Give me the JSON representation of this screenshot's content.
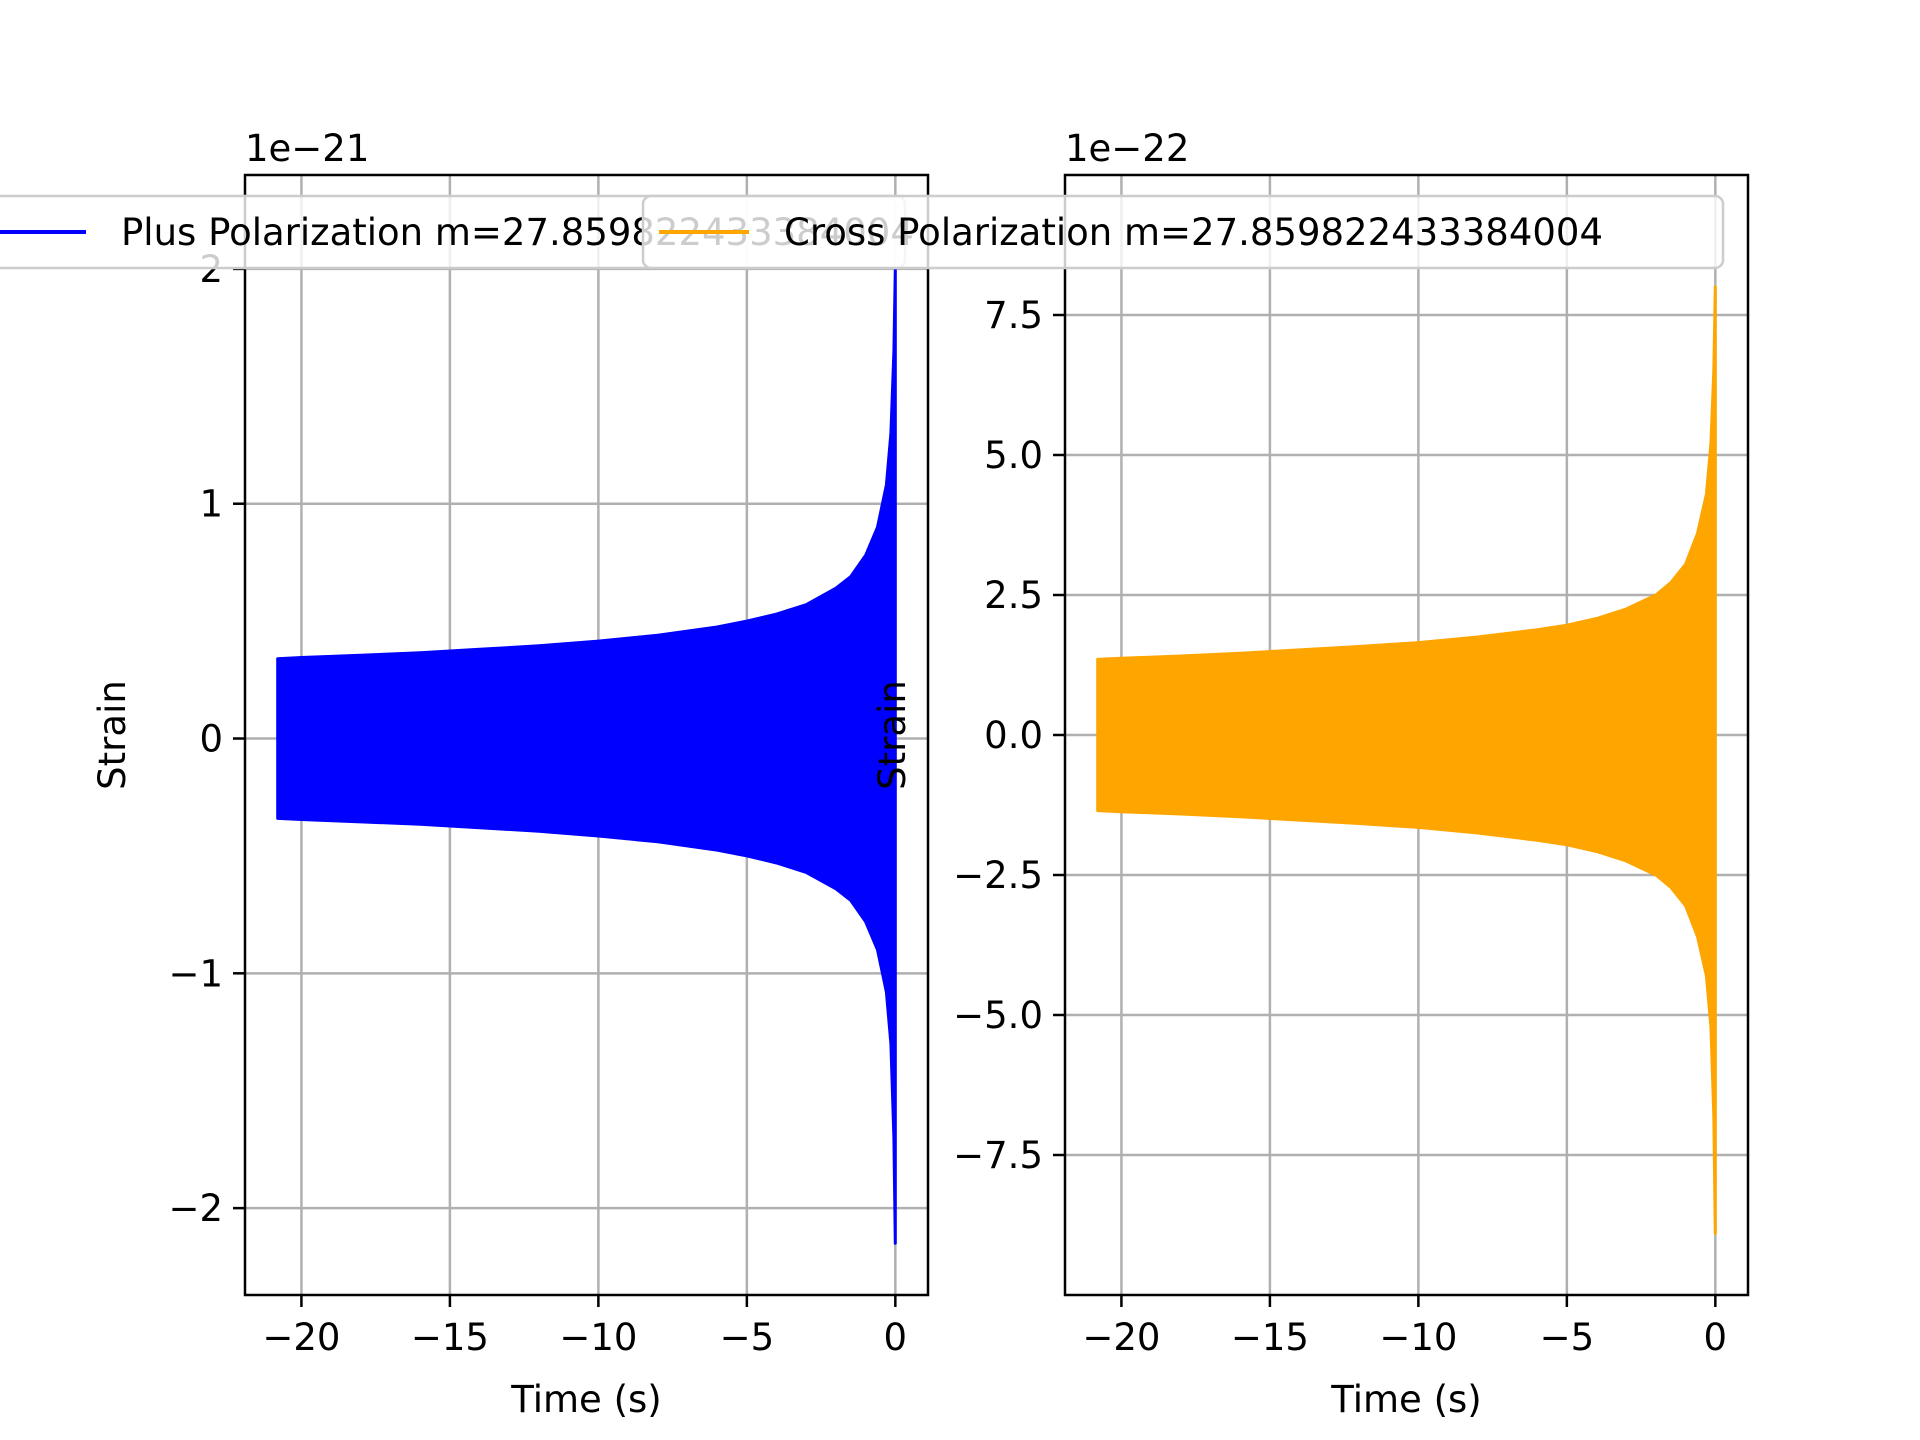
{
  "chart_data": [
    {
      "type": "line",
      "title": "",
      "xlabel": "Time (s)",
      "ylabel": "Strain",
      "offset_label": "1e−21",
      "xlim": [
        -21.9,
        1.1
      ],
      "ylim": [
        -2.37,
        2.4
      ],
      "xticks": [
        -20,
        -15,
        -10,
        -5,
        0
      ],
      "xtick_labels": [
        "−20",
        "−15",
        "−10",
        "−5",
        "0"
      ],
      "yticks": [
        -2,
        -1,
        0,
        1,
        2
      ],
      "ytick_labels": [
        "−2",
        "−1",
        "0",
        "1",
        "2"
      ],
      "grid": true,
      "legend_placement": "upper-center",
      "color": "#0000ff",
      "series": [
        {
          "name": "Plus Polarization m=27.859822433384004",
          "x": [
            -20.8,
            -20.0,
            -18.0,
            -16.0,
            -14.0,
            -12.0,
            -10.0,
            -8.0,
            -6.0,
            -5.0,
            -4.0,
            -3.0,
            -2.0,
            -1.5,
            -1.0,
            -0.6,
            -0.3,
            -0.15,
            -0.05,
            0.0
          ],
          "upper": [
            0.34,
            0.345,
            0.355,
            0.365,
            0.38,
            0.395,
            0.415,
            0.44,
            0.475,
            0.5,
            0.53,
            0.57,
            0.64,
            0.69,
            0.78,
            0.9,
            1.08,
            1.3,
            1.65,
            2.0
          ],
          "lower": [
            -0.34,
            -0.345,
            -0.355,
            -0.365,
            -0.38,
            -0.395,
            -0.415,
            -0.44,
            -0.475,
            -0.5,
            -0.53,
            -0.57,
            -0.64,
            -0.69,
            -0.78,
            -0.9,
            -1.08,
            -1.3,
            -1.7,
            -2.15
          ]
        }
      ]
    },
    {
      "type": "line",
      "title": "",
      "xlabel": "Time (s)",
      "ylabel": "Strain",
      "offset_label": "1e−22",
      "xlim": [
        -21.9,
        1.1
      ],
      "ylim": [
        -10.0,
        10.0
      ],
      "xticks": [
        -20,
        -15,
        -10,
        -5,
        0
      ],
      "xtick_labels": [
        "−20",
        "−15",
        "−10",
        "−5",
        "0"
      ],
      "yticks": [
        -7.5,
        -5.0,
        -2.5,
        0.0,
        2.5,
        5.0,
        7.5
      ],
      "ytick_labels": [
        "−7.5",
        "−5.0",
        "−2.5",
        "0.0",
        "2.5",
        "5.0",
        "7.5"
      ],
      "grid": true,
      "legend_placement": "upper-center",
      "color": "#ffa500",
      "series": [
        {
          "name": "Cross Polarization m=27.859822433384004",
          "x": [
            -20.8,
            -20.0,
            -18.0,
            -16.0,
            -14.0,
            -12.0,
            -10.0,
            -8.0,
            -6.0,
            -5.0,
            -4.0,
            -3.0,
            -2.0,
            -1.5,
            -1.0,
            -0.6,
            -0.3,
            -0.15,
            -0.05,
            0.0
          ],
          "upper": [
            1.35,
            1.37,
            1.41,
            1.46,
            1.52,
            1.58,
            1.65,
            1.75,
            1.88,
            1.96,
            2.08,
            2.25,
            2.5,
            2.72,
            3.05,
            3.6,
            4.3,
            5.2,
            6.5,
            8.0
          ],
          "lower": [
            -1.35,
            -1.37,
            -1.41,
            -1.46,
            -1.52,
            -1.58,
            -1.65,
            -1.75,
            -1.88,
            -1.96,
            -2.08,
            -2.25,
            -2.5,
            -2.72,
            -3.05,
            -3.6,
            -4.3,
            -5.2,
            -6.8,
            -8.9
          ]
        }
      ]
    }
  ]
}
